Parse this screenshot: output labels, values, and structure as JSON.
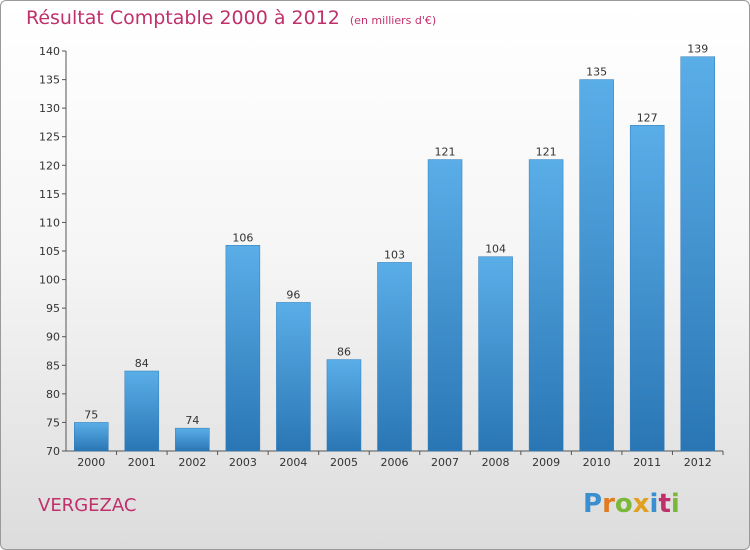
{
  "header": {
    "title": "Résultat Comptable 2000 à 2012",
    "subtitle": "(en milliers d'€)"
  },
  "footer": {
    "commune": "VERGEZAC",
    "logo_letters": [
      "P",
      "r",
      "o",
      "x",
      "i",
      "t",
      "i"
    ],
    "logo_colors": [
      "#3a8fd0",
      "#e07b20",
      "#7bb83a",
      "#e0a020",
      "#3a8fd0",
      "#c0306a",
      "#7bb83a"
    ]
  },
  "colors": {
    "bar_light": "#5aaee8",
    "bar_dark": "#2a76b4",
    "title": "#c0306a",
    "axis": "#555555"
  },
  "chart_data": {
    "type": "bar",
    "title": "Résultat Comptable 2000 à 2012",
    "ylabel": "",
    "xlabel": "",
    "categories": [
      "2000",
      "2001",
      "2002",
      "2003",
      "2004",
      "2005",
      "2006",
      "2007",
      "2008",
      "2009",
      "2010",
      "2011",
      "2012"
    ],
    "values": [
      75,
      84,
      74,
      106,
      96,
      86,
      103,
      121,
      104,
      121,
      135,
      127,
      139
    ],
    "ylim": [
      70,
      140
    ],
    "yticks": [
      70,
      75,
      80,
      85,
      90,
      95,
      100,
      105,
      110,
      115,
      120,
      125,
      130,
      135,
      140
    ],
    "grid": false
  }
}
